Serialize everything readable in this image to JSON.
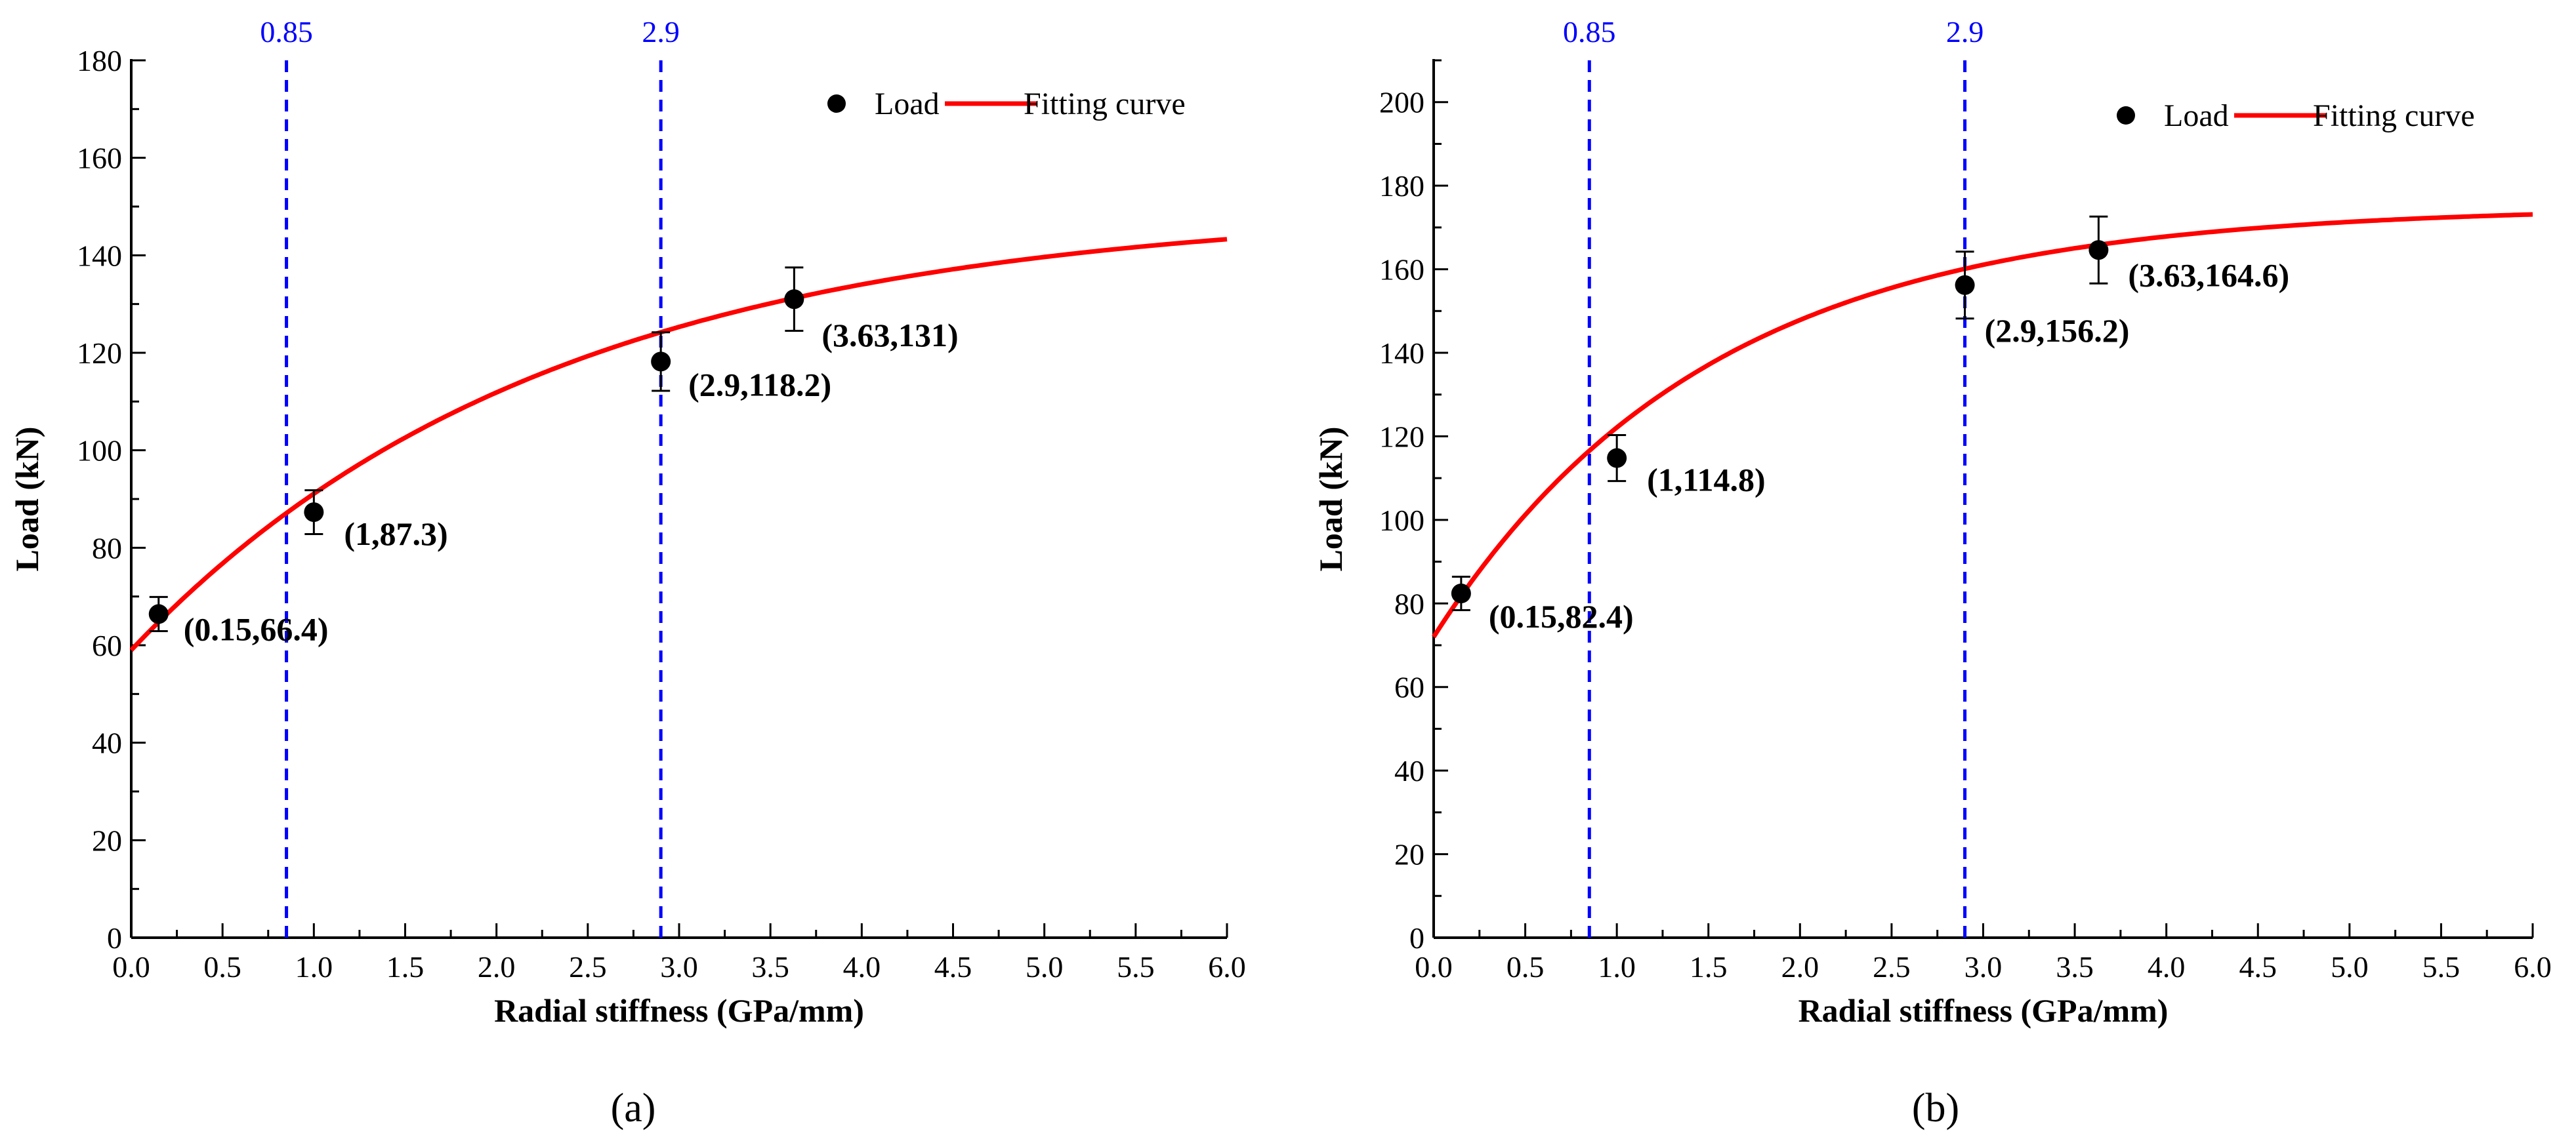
{
  "colors": {
    "points": "#000000",
    "fitting_curve": "#ff0000",
    "reference_lines": "#0000ff",
    "axes": "#000000"
  },
  "chart_data": [
    {
      "type": "scatter",
      "panel_caption": "(a)",
      "xlabel": "Radial stiffness (GPa/mm)",
      "ylabel": "Load (kN)",
      "xlim": [
        0,
        6
      ],
      "ylim": [
        0,
        180
      ],
      "xticks": [
        "0.0",
        "0.5",
        "1.0",
        "1.5",
        "2.0",
        "2.5",
        "3.0",
        "3.5",
        "4.0",
        "4.5",
        "5.0",
        "5.5",
        "6.0"
      ],
      "yticks": [
        "0",
        "20",
        "40",
        "60",
        "80",
        "100",
        "120",
        "140",
        "160",
        "180"
      ],
      "legend": {
        "position": "top-right",
        "entries": [
          "Load",
          "Fitting curve"
        ]
      },
      "series": [
        {
          "name": "Load",
          "kind": "points",
          "points": [
            {
              "x": 0.15,
              "y": 66.4,
              "err": 3.5,
              "label": "(0.15,66.4)"
            },
            {
              "x": 1,
              "y": 87.3,
              "err": 4.5,
              "label": "(1,87.3)"
            },
            {
              "x": 2.9,
              "y": 118.2,
              "err": 6,
              "label": "(2.9,118.2)"
            },
            {
              "x": 3.63,
              "y": 131,
              "err": 6.5,
              "label": "(3.63,131)"
            }
          ]
        },
        {
          "name": "Fitting curve",
          "kind": "line",
          "model": "y = a - b*exp(-x/t)",
          "params": {
            "a": 150,
            "b": 91,
            "t": 2.3
          }
        }
      ],
      "reference_lines": [
        {
          "x": 0.85,
          "label": "0.85"
        },
        {
          "x": 2.9,
          "label": "2.9"
        }
      ]
    },
    {
      "type": "scatter",
      "panel_caption": "(b)",
      "xlabel": "Radial stiffness (GPa/mm)",
      "ylabel": "Load (kN)",
      "xlim": [
        0,
        6
      ],
      "ylim": [
        0,
        210
      ],
      "xticks": [
        "0.0",
        "0.5",
        "1.0",
        "1.5",
        "2.0",
        "2.5",
        "3.0",
        "3.5",
        "4.0",
        "4.5",
        "5.0",
        "5.5",
        "6.0"
      ],
      "yticks": [
        "0",
        "20",
        "40",
        "60",
        "80",
        "100",
        "120",
        "140",
        "160",
        "180",
        "200"
      ],
      "legend": {
        "position": "top-right",
        "entries": [
          "Load",
          "Fitting curve"
        ]
      },
      "series": [
        {
          "name": "Load",
          "kind": "points",
          "points": [
            {
              "x": 0.15,
              "y": 82.4,
              "err": 4,
              "label": "(0.15,82.4)"
            },
            {
              "x": 1,
              "y": 114.8,
              "err": 5.5,
              "label": "(1,114.8)"
            },
            {
              "x": 2.9,
              "y": 156.2,
              "err": 8,
              "label": "(2.9,156.2)"
            },
            {
              "x": 3.63,
              "y": 164.6,
              "err": 8,
              "label": "(3.63,164.6)"
            }
          ]
        },
        {
          "name": "Fitting curve",
          "kind": "line",
          "model": "y = a - b*exp(-x/t)",
          "params": {
            "a": 175,
            "b": 103,
            "t": 1.5
          }
        }
      ],
      "reference_lines": [
        {
          "x": 0.85,
          "label": "0.85"
        },
        {
          "x": 2.9,
          "label": "2.9"
        }
      ]
    }
  ]
}
